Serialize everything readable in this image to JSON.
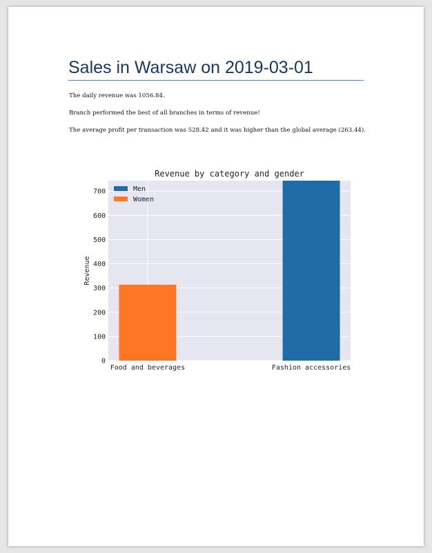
{
  "document": {
    "title": "Sales in Warsaw on 2019-03-01",
    "paragraphs": [
      "The daily revenue was 1056.84.",
      "Branch performed the best of all branches in terms of revenue!",
      "The average profit per transaction was 528.42 and it was higher than the global average (263.44)."
    ]
  },
  "chart_data": {
    "type": "bar",
    "title": "Revenue by category and gender",
    "xlabel": "",
    "ylabel": "Revenue",
    "categories": [
      "Food and beverages",
      "Fashion accessories"
    ],
    "series": [
      {
        "name": "Men",
        "color": "#1f6ca8",
        "values": [
          0,
          743.34
        ]
      },
      {
        "name": "Women",
        "color": "#ff7626",
        "values": [
          313.5,
          0
        ]
      }
    ],
    "yticks": [
      0,
      100,
      200,
      300,
      400,
      500,
      600,
      700
    ],
    "ylim": [
      0,
      743.34
    ],
    "grid": true,
    "legend": "top-left",
    "background": "#e5e6f0"
  }
}
